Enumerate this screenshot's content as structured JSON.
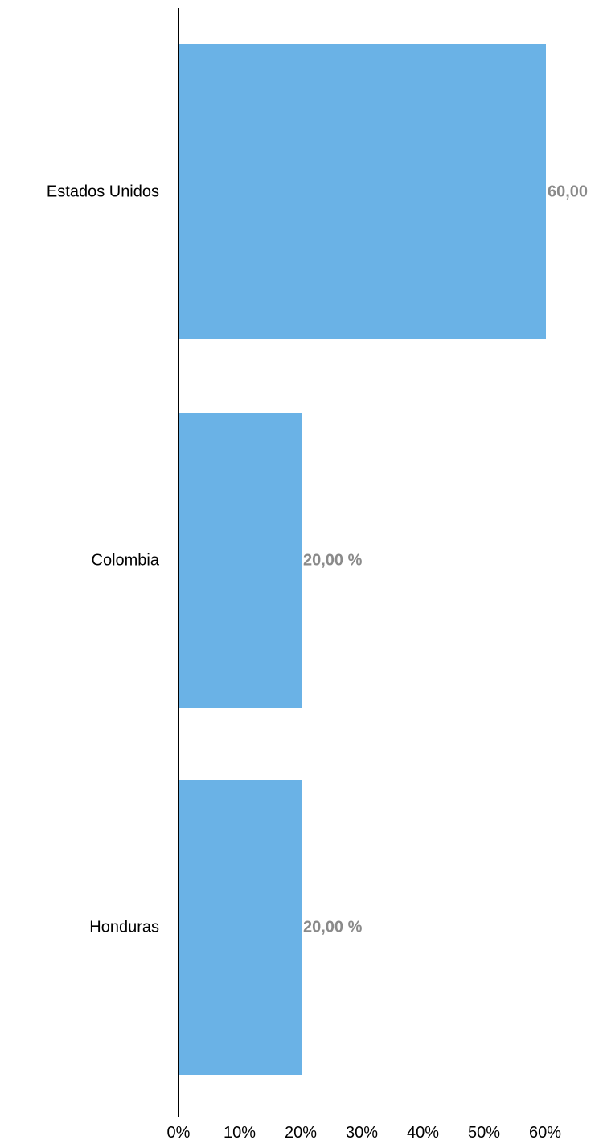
{
  "chart_data": {
    "type": "bar",
    "orientation": "horizontal",
    "categories": [
      "Estados Unidos",
      "Colombia",
      "Honduras"
    ],
    "values": [
      60,
      20,
      20
    ],
    "data_labels": [
      "60,00",
      "20,00 %",
      "20,00 %"
    ],
    "x_ticks": [
      "0%",
      "10%",
      "20%",
      "30%",
      "40%",
      "50%",
      "60%"
    ],
    "xlim": [
      0,
      60
    ],
    "title": "",
    "xlabel": "",
    "ylabel": "",
    "grid": false,
    "legend": "none",
    "colors": {
      "bar": "#6ab2e6",
      "axis": "#000000",
      "data_label": "#8a8a8a"
    }
  }
}
